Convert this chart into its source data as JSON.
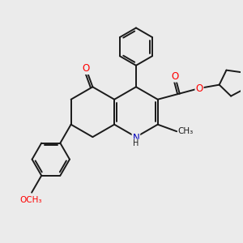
{
  "bg_color": "#ebebeb",
  "bond_color": "#1a1a1a",
  "bond_width": 1.4,
  "atom_colors": {
    "O": "#ff0000",
    "N": "#0000bb",
    "C": "#1a1a1a",
    "H": "#1a1a1a"
  },
  "font_size_atom": 8.5,
  "font_size_small": 7.5
}
